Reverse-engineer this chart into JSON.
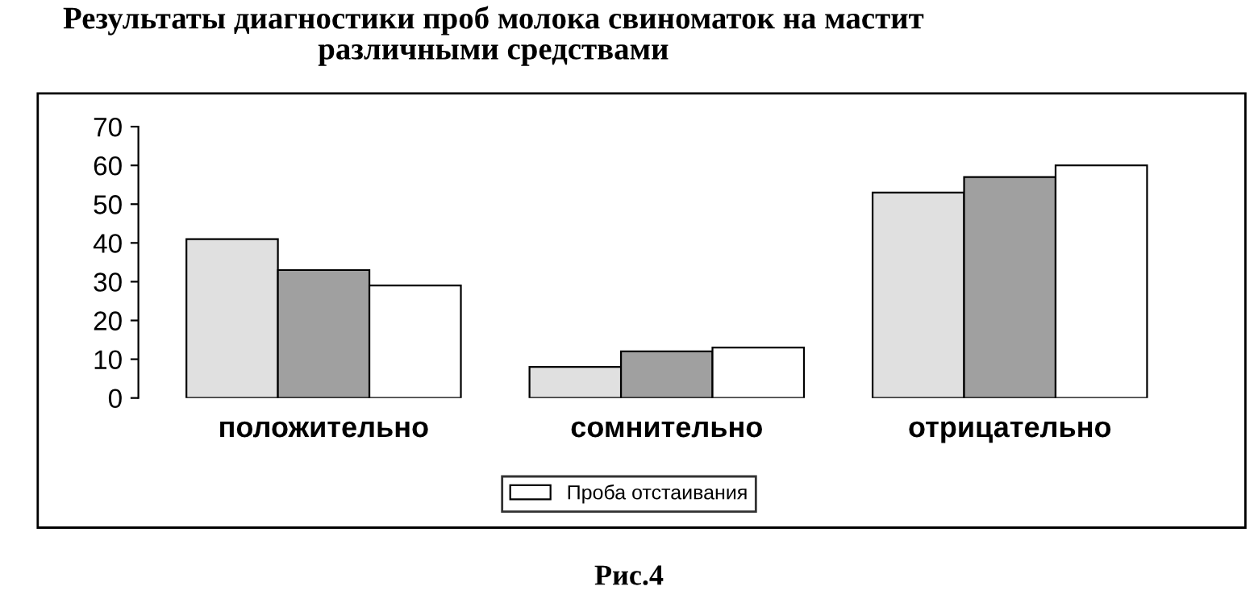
{
  "chart_data": {
    "type": "bar",
    "title": "Результаты диагностики проб молока свиноматок на мастит\nразличными средствами",
    "categories": [
      "положительно",
      "сомнительно",
      "отрицательно"
    ],
    "series": [
      {
        "color": "#e0e0e0",
        "values": [
          41,
          8,
          53
        ]
      },
      {
        "color": "#a0a0a0",
        "values": [
          33,
          12,
          57
        ]
      },
      {
        "name": "Проба отстаивания",
        "color": "#ffffff",
        "values": [
          29,
          13,
          60
        ]
      }
    ],
    "ylim": [
      0,
      70
    ],
    "yticks": [
      0,
      10,
      20,
      30,
      40,
      50,
      60,
      70
    ],
    "grid": false,
    "legend": "bottom",
    "annotations": [
      "Рис.4"
    ]
  }
}
